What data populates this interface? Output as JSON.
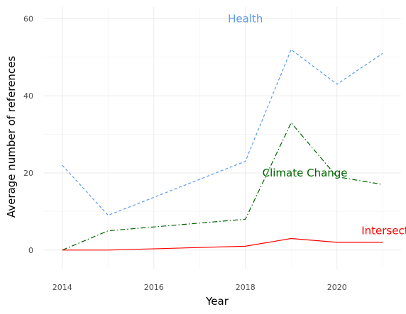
{
  "chart_data": {
    "type": "line",
    "title": "",
    "xlabel": "Year",
    "ylabel": "Average number of references",
    "x": [
      2014,
      2015,
      2016,
      2017,
      2018,
      2019,
      2020,
      2021
    ],
    "xlim": [
      2013.6,
      2021.4
    ],
    "ylim": [
      -5,
      63
    ],
    "x_ticks": [
      2014,
      2016,
      2018,
      2020
    ],
    "y_ticks": [
      0,
      20,
      40,
      60
    ],
    "grid": true,
    "legend": "none (direct labels on lines)",
    "series": [
      {
        "name": "Health",
        "color": "#5b9bec",
        "dash": "dashed",
        "x": [
          2014,
          2015,
          2018,
          2019,
          2020,
          2021
        ],
        "values": [
          22,
          9,
          23,
          52,
          43,
          51
        ],
        "label_at": [
          2018,
          60
        ]
      },
      {
        "name": "Climate Change",
        "color": "#006400",
        "dash": "dashdot",
        "x": [
          2014,
          2015,
          2018,
          2019,
          2020,
          2021
        ],
        "values": [
          0,
          5,
          8,
          33,
          19,
          17
        ],
        "label_at": [
          2019.3,
          20
        ]
      },
      {
        "name": "Intersect",
        "color": "#ff0000",
        "dash": "solid",
        "x": [
          2014,
          2015,
          2018,
          2019,
          2020,
          2021
        ],
        "values": [
          0,
          0,
          1,
          3,
          2,
          2
        ],
        "label_at": [
          2021.05,
          5
        ]
      }
    ]
  }
}
